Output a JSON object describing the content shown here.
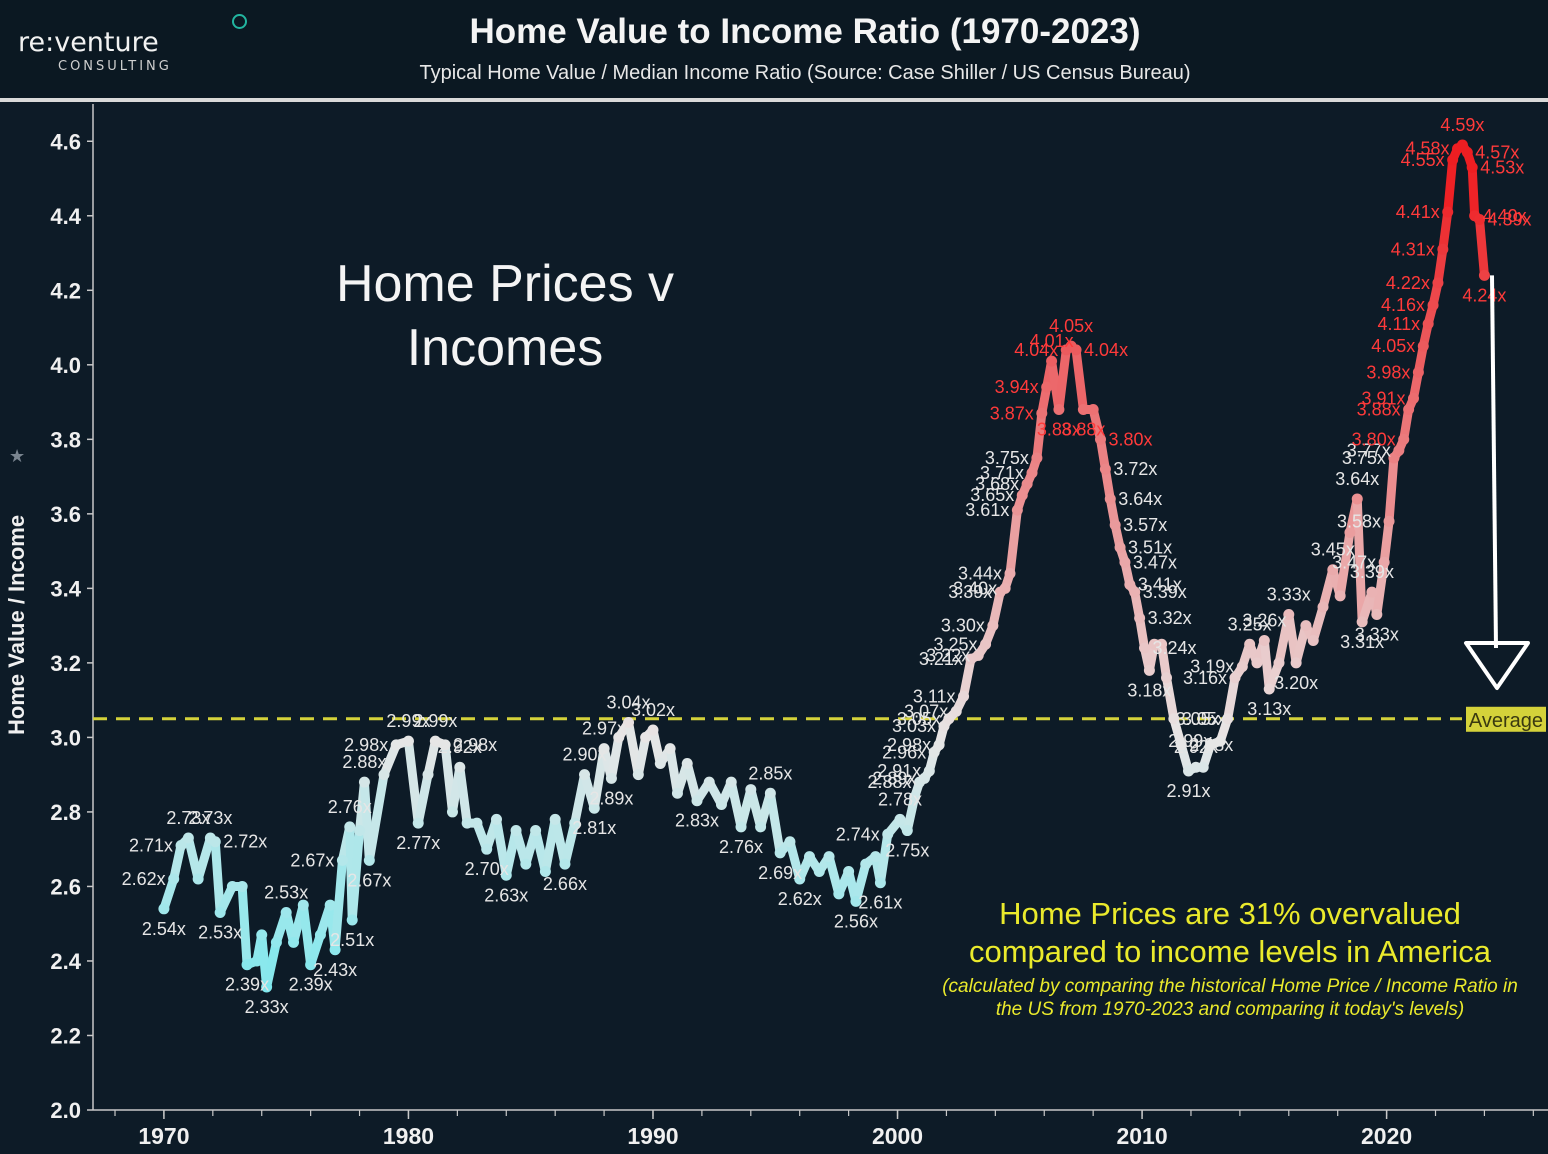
{
  "header": {
    "logo_main": "re:venture",
    "logo_sub": "CONSULTING",
    "title": "Home Value to Income Ratio (1970-2023)",
    "subtitle": "Typical Home Value / Median Income Ratio (Source: Case Shiller / US Census Bureau)"
  },
  "annotations": {
    "big_label": "Home Prices v Incomes",
    "callout_main": "Home Prices are 31% overvalued compared to income levels in America",
    "callout_note": "(calculated by comparing the historical Home Price / Income Ratio in the US from 1970-2023 and comparing it today's levels)",
    "average_label": "Average"
  },
  "colors": {
    "background": "#0d1b27",
    "low": "#7fe8ee",
    "mid": "#e8e6e6",
    "high": "#ee1e22",
    "average_line": "#d4d23a"
  },
  "chart_data": {
    "type": "line",
    "title": "Home Value to Income Ratio (1970-2023)",
    "ylabel": "Home Value / Income",
    "xlabel": "",
    "xlim": [
      1967.1,
      2026.6
    ],
    "ylim": [
      2.0,
      4.7
    ],
    "yticks": [
      2.0,
      2.2,
      2.4,
      2.6,
      2.8,
      3.0,
      3.2,
      3.4,
      3.6,
      3.8,
      4.0,
      4.2,
      4.4,
      4.6
    ],
    "ytick_labels": [
      "2.0",
      "2.2",
      "2.4",
      "2.6",
      "2.8",
      "3.0",
      "3.2",
      "3.4",
      "3.6",
      "3.8",
      "4.0",
      "4.2",
      "4.4",
      "4.6"
    ],
    "xticks": [
      1970,
      1980,
      1990,
      2000,
      2010,
      2020
    ],
    "xtick_labels": [
      "1970",
      "1980",
      "1990",
      "2000",
      "2010",
      "2020"
    ],
    "average": 3.05,
    "series": [
      {
        "points": [
          {
            "x": 1970.0,
            "y": 2.54,
            "label": "2.54x"
          },
          {
            "x": 1970.4,
            "y": 2.62,
            "label": "2.62x"
          },
          {
            "x": 1970.7,
            "y": 2.71,
            "label": "2.71x"
          },
          {
            "x": 1971.0,
            "y": 2.73,
            "label": "2.73x"
          },
          {
            "x": 1971.4,
            "y": 2.62,
            "label": ""
          },
          {
            "x": 1971.9,
            "y": 2.73,
            "label": "2.73x"
          },
          {
            "x": 1972.1,
            "y": 2.72,
            "label": "2.72x"
          },
          {
            "x": 1972.3,
            "y": 2.53,
            "label": "2.53x"
          },
          {
            "x": 1972.8,
            "y": 2.6,
            "label": ""
          },
          {
            "x": 1973.2,
            "y": 2.6,
            "label": ""
          },
          {
            "x": 1973.4,
            "y": 2.39,
            "label": "2.39x"
          },
          {
            "x": 1973.8,
            "y": 2.4,
            "label": ""
          },
          {
            "x": 1974.0,
            "y": 2.47,
            "label": ""
          },
          {
            "x": 1974.2,
            "y": 2.33,
            "label": "2.33x"
          },
          {
            "x": 1974.6,
            "y": 2.45,
            "label": ""
          },
          {
            "x": 1975.0,
            "y": 2.53,
            "label": "2.53x"
          },
          {
            "x": 1975.3,
            "y": 2.45,
            "label": ""
          },
          {
            "x": 1975.7,
            "y": 2.55,
            "label": ""
          },
          {
            "x": 1976.0,
            "y": 2.39,
            "label": "2.39x"
          },
          {
            "x": 1976.4,
            "y": 2.47,
            "label": ""
          },
          {
            "x": 1976.8,
            "y": 2.55,
            "label": ""
          },
          {
            "x": 1977.0,
            "y": 2.43,
            "label": "2.43x"
          },
          {
            "x": 1977.3,
            "y": 2.67,
            "label": "2.67x"
          },
          {
            "x": 1977.6,
            "y": 2.76,
            "label": "2.76x"
          },
          {
            "x": 1977.7,
            "y": 2.51,
            "label": "2.51x"
          },
          {
            "x": 1978.0,
            "y": 2.75,
            "label": ""
          },
          {
            "x": 1978.2,
            "y": 2.88,
            "label": "2.88x"
          },
          {
            "x": 1978.4,
            "y": 2.67,
            "label": "2.67x"
          },
          {
            "x": 1979.0,
            "y": 2.9,
            "label": ""
          },
          {
            "x": 1979.5,
            "y": 2.98,
            "label": "2.98x"
          },
          {
            "x": 1980.0,
            "y": 2.99,
            "label": "2.99x"
          },
          {
            "x": 1980.4,
            "y": 2.77,
            "label": "2.77x"
          },
          {
            "x": 1980.8,
            "y": 2.9,
            "label": ""
          },
          {
            "x": 1981.1,
            "y": 2.99,
            "label": "2.99x"
          },
          {
            "x": 1981.5,
            "y": 2.98,
            "label": "2.98x"
          },
          {
            "x": 1981.8,
            "y": 2.8,
            "label": ""
          },
          {
            "x": 1982.1,
            "y": 2.92,
            "label": "2.92x"
          },
          {
            "x": 1982.4,
            "y": 2.77,
            "label": ""
          },
          {
            "x": 1982.8,
            "y": 2.77,
            "label": ""
          },
          {
            "x": 1983.2,
            "y": 2.7,
            "label": "2.70x"
          },
          {
            "x": 1983.6,
            "y": 2.78,
            "label": ""
          },
          {
            "x": 1984.0,
            "y": 2.63,
            "label": "2.63x"
          },
          {
            "x": 1984.4,
            "y": 2.75,
            "label": ""
          },
          {
            "x": 1984.8,
            "y": 2.66,
            "label": ""
          },
          {
            "x": 1985.2,
            "y": 2.75,
            "label": ""
          },
          {
            "x": 1985.6,
            "y": 2.64,
            "label": ""
          },
          {
            "x": 1986.0,
            "y": 2.78,
            "label": ""
          },
          {
            "x": 1986.4,
            "y": 2.66,
            "label": "2.66x"
          },
          {
            "x": 1986.8,
            "y": 2.77,
            "label": ""
          },
          {
            "x": 1987.2,
            "y": 2.9,
            "label": "2.90x"
          },
          {
            "x": 1987.6,
            "y": 2.81,
            "label": "2.81x"
          },
          {
            "x": 1988.0,
            "y": 2.97,
            "label": "2.97x"
          },
          {
            "x": 1988.3,
            "y": 2.89,
            "label": "2.89x"
          },
          {
            "x": 1988.6,
            "y": 3.0,
            "label": ""
          },
          {
            "x": 1989.0,
            "y": 3.04,
            "label": "3.04x"
          },
          {
            "x": 1989.4,
            "y": 2.9,
            "label": ""
          },
          {
            "x": 1989.7,
            "y": 3.0,
            "label": ""
          },
          {
            "x": 1990.0,
            "y": 3.02,
            "label": "3.02x"
          },
          {
            "x": 1990.3,
            "y": 2.93,
            "label": ""
          },
          {
            "x": 1990.7,
            "y": 2.97,
            "label": ""
          },
          {
            "x": 1991.0,
            "y": 2.85,
            "label": ""
          },
          {
            "x": 1991.4,
            "y": 2.93,
            "label": ""
          },
          {
            "x": 1991.8,
            "y": 2.83,
            "label": "2.83x"
          },
          {
            "x": 1992.3,
            "y": 2.88,
            "label": ""
          },
          {
            "x": 1992.8,
            "y": 2.82,
            "label": ""
          },
          {
            "x": 1993.2,
            "y": 2.88,
            "label": ""
          },
          {
            "x": 1993.6,
            "y": 2.76,
            "label": "2.76x"
          },
          {
            "x": 1994.0,
            "y": 2.86,
            "label": ""
          },
          {
            "x": 1994.4,
            "y": 2.76,
            "label": ""
          },
          {
            "x": 1994.8,
            "y": 2.85,
            "label": "2.85x"
          },
          {
            "x": 1995.2,
            "y": 2.69,
            "label": "2.69x"
          },
          {
            "x": 1995.6,
            "y": 2.72,
            "label": ""
          },
          {
            "x": 1996.0,
            "y": 2.62,
            "label": "2.62x"
          },
          {
            "x": 1996.4,
            "y": 2.68,
            "label": ""
          },
          {
            "x": 1996.8,
            "y": 2.64,
            "label": ""
          },
          {
            "x": 1997.2,
            "y": 2.68,
            "label": ""
          },
          {
            "x": 1997.6,
            "y": 2.58,
            "label": ""
          },
          {
            "x": 1998.0,
            "y": 2.64,
            "label": ""
          },
          {
            "x": 1998.3,
            "y": 2.56,
            "label": "2.56x"
          },
          {
            "x": 1998.7,
            "y": 2.66,
            "label": ""
          },
          {
            "x": 1999.1,
            "y": 2.68,
            "label": ""
          },
          {
            "x": 1999.3,
            "y": 2.61,
            "label": "2.61x"
          },
          {
            "x": 1999.6,
            "y": 2.74,
            "label": "2.74x"
          },
          {
            "x": 2000.1,
            "y": 2.78,
            "label": "2.78x"
          },
          {
            "x": 2000.4,
            "y": 2.75,
            "label": "2.75x"
          },
          {
            "x": 2000.7,
            "y": 2.84,
            "label": ""
          },
          {
            "x": 2000.9,
            "y": 2.88,
            "label": "2.88x"
          },
          {
            "x": 2001.1,
            "y": 2.89,
            "label": "2.89x"
          },
          {
            "x": 2001.3,
            "y": 2.91,
            "label": "2.91x"
          },
          {
            "x": 2001.5,
            "y": 2.96,
            "label": "2.96x"
          },
          {
            "x": 2001.7,
            "y": 2.98,
            "label": "2.98x"
          },
          {
            "x": 2001.9,
            "y": 3.03,
            "label": "3.03x"
          },
          {
            "x": 2002.1,
            "y": 3.05,
            "label": "3.05x"
          },
          {
            "x": 2002.4,
            "y": 3.07,
            "label": "3.07x"
          },
          {
            "x": 2002.7,
            "y": 3.11,
            "label": "3.11x"
          },
          {
            "x": 2003.0,
            "y": 3.21,
            "label": "3.21x"
          },
          {
            "x": 2003.3,
            "y": 3.22,
            "label": "3.22x"
          },
          {
            "x": 2003.6,
            "y": 3.25,
            "label": "3.25x"
          },
          {
            "x": 2003.9,
            "y": 3.3,
            "label": "3.30x"
          },
          {
            "x": 2004.2,
            "y": 3.39,
            "label": "3.39x"
          },
          {
            "x": 2004.4,
            "y": 3.4,
            "label": "3.40x"
          },
          {
            "x": 2004.6,
            "y": 3.44,
            "label": "3.44x"
          },
          {
            "x": 2004.9,
            "y": 3.61,
            "label": "3.61x"
          },
          {
            "x": 2005.1,
            "y": 3.65,
            "label": "3.65x"
          },
          {
            "x": 2005.3,
            "y": 3.68,
            "label": "3.68x"
          },
          {
            "x": 2005.5,
            "y": 3.71,
            "label": "3.71x"
          },
          {
            "x": 2005.7,
            "y": 3.75,
            "label": "3.75x"
          },
          {
            "x": 2005.9,
            "y": 3.87,
            "label": "3.87x"
          },
          {
            "x": 2006.1,
            "y": 3.94,
            "label": "3.94x"
          },
          {
            "x": 2006.3,
            "y": 4.01,
            "label": "4.01x"
          },
          {
            "x": 2006.6,
            "y": 3.88,
            "label": "3.88x"
          },
          {
            "x": 2006.9,
            "y": 4.04,
            "label": "4.04x"
          },
          {
            "x": 2007.1,
            "y": 4.05,
            "label": "4.05x"
          },
          {
            "x": 2007.3,
            "y": 4.04,
            "label": "4.04x"
          },
          {
            "x": 2007.6,
            "y": 3.88,
            "label": "3.88x"
          },
          {
            "x": 2008.0,
            "y": 3.88,
            "label": ""
          },
          {
            "x": 2008.3,
            "y": 3.8,
            "label": "3.80x"
          },
          {
            "x": 2008.5,
            "y": 3.72,
            "label": "3.72x"
          },
          {
            "x": 2008.7,
            "y": 3.64,
            "label": "3.64x"
          },
          {
            "x": 2008.9,
            "y": 3.57,
            "label": "3.57x"
          },
          {
            "x": 2009.1,
            "y": 3.51,
            "label": "3.51x"
          },
          {
            "x": 2009.3,
            "y": 3.47,
            "label": "3.47x"
          },
          {
            "x": 2009.5,
            "y": 3.41,
            "label": "3.41x"
          },
          {
            "x": 2009.7,
            "y": 3.39,
            "label": "3.39x"
          },
          {
            "x": 2009.9,
            "y": 3.32,
            "label": "3.32x"
          },
          {
            "x": 2010.1,
            "y": 3.24,
            "label": "3.24x"
          },
          {
            "x": 2010.3,
            "y": 3.18,
            "label": "3.18x"
          },
          {
            "x": 2010.5,
            "y": 3.25,
            "label": ""
          },
          {
            "x": 2010.8,
            "y": 3.25,
            "label": ""
          },
          {
            "x": 2011.0,
            "y": 3.16,
            "label": ""
          },
          {
            "x": 2011.3,
            "y": 3.05,
            "label": "3.05x"
          },
          {
            "x": 2011.6,
            "y": 2.98,
            "label": "2.98x"
          },
          {
            "x": 2011.9,
            "y": 2.91,
            "label": "2.91x"
          },
          {
            "x": 2012.2,
            "y": 2.92,
            "label": "2.92x"
          },
          {
            "x": 2012.5,
            "y": 2.92,
            "label": ""
          },
          {
            "x": 2012.8,
            "y": 2.98,
            "label": ""
          },
          {
            "x": 2013.2,
            "y": 2.99,
            "label": "2.99x"
          },
          {
            "x": 2013.5,
            "y": 3.05,
            "label": "3.05x"
          },
          {
            "x": 2013.8,
            "y": 3.16,
            "label": "3.16x"
          },
          {
            "x": 2014.1,
            "y": 3.19,
            "label": "3.19x"
          },
          {
            "x": 2014.4,
            "y": 3.25,
            "label": "3.25x"
          },
          {
            "x": 2014.7,
            "y": 3.2,
            "label": ""
          },
          {
            "x": 2015.0,
            "y": 3.26,
            "label": "3.26x"
          },
          {
            "x": 2015.2,
            "y": 3.13,
            "label": "3.13x"
          },
          {
            "x": 2015.6,
            "y": 3.2,
            "label": ""
          },
          {
            "x": 2016.0,
            "y": 3.33,
            "label": "3.33x"
          },
          {
            "x": 2016.3,
            "y": 3.2,
            "label": "3.20x"
          },
          {
            "x": 2016.7,
            "y": 3.3,
            "label": ""
          },
          {
            "x": 2017.0,
            "y": 3.26,
            "label": ""
          },
          {
            "x": 2017.4,
            "y": 3.35,
            "label": ""
          },
          {
            "x": 2017.8,
            "y": 3.45,
            "label": "3.45x"
          },
          {
            "x": 2018.1,
            "y": 3.38,
            "label": ""
          },
          {
            "x": 2018.5,
            "y": 3.55,
            "label": ""
          },
          {
            "x": 2018.8,
            "y": 3.64,
            "label": "3.64x"
          },
          {
            "x": 2019.0,
            "y": 3.31,
            "label": "3.31x"
          },
          {
            "x": 2019.4,
            "y": 3.39,
            "label": "3.39x"
          },
          {
            "x": 2019.6,
            "y": 3.33,
            "label": "3.33x"
          },
          {
            "x": 2019.9,
            "y": 3.47,
            "label": "3.47x"
          },
          {
            "x": 2020.1,
            "y": 3.58,
            "label": "3.58x"
          },
          {
            "x": 2020.3,
            "y": 3.75,
            "label": "3.75x"
          },
          {
            "x": 2020.5,
            "y": 3.77,
            "label": "3.77x"
          },
          {
            "x": 2020.7,
            "y": 3.8,
            "label": "3.80x"
          },
          {
            "x": 2020.9,
            "y": 3.88,
            "label": "3.88x"
          },
          {
            "x": 2021.1,
            "y": 3.91,
            "label": "3.91x"
          },
          {
            "x": 2021.3,
            "y": 3.98,
            "label": "3.98x"
          },
          {
            "x": 2021.5,
            "y": 4.05,
            "label": "4.05x"
          },
          {
            "x": 2021.7,
            "y": 4.11,
            "label": "4.11x"
          },
          {
            "x": 2021.9,
            "y": 4.16,
            "label": "4.16x"
          },
          {
            "x": 2022.1,
            "y": 4.22,
            "label": "4.22x"
          },
          {
            "x": 2022.3,
            "y": 4.31,
            "label": "4.31x"
          },
          {
            "x": 2022.5,
            "y": 4.41,
            "label": "4.41x"
          },
          {
            "x": 2022.7,
            "y": 4.55,
            "label": "4.55x"
          },
          {
            "x": 2022.9,
            "y": 4.58,
            "label": "4.58x"
          },
          {
            "x": 2023.1,
            "y": 4.59,
            "label": "4.59x"
          },
          {
            "x": 2023.3,
            "y": 4.57,
            "label": "4.57x"
          },
          {
            "x": 2023.5,
            "y": 4.53,
            "label": "4.53x"
          },
          {
            "x": 2023.6,
            "y": 4.4,
            "label": "4.40x"
          },
          {
            "x": 2023.8,
            "y": 4.39,
            "label": "4.39x"
          },
          {
            "x": 2024.0,
            "y": 4.24,
            "label": "4.24x"
          }
        ]
      }
    ]
  }
}
